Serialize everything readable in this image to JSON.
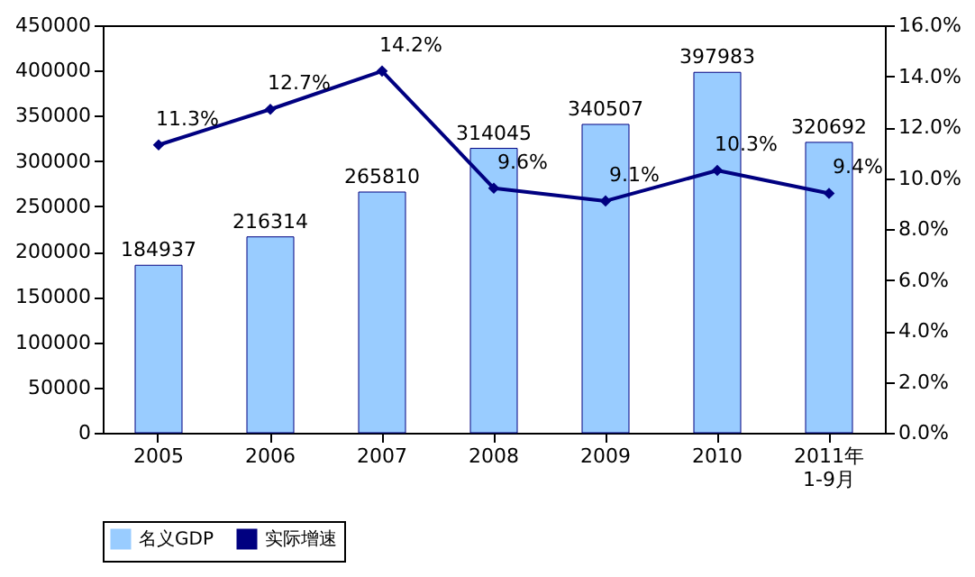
{
  "chart_data": {
    "type": "bar",
    "categories": [
      "2005",
      "2006",
      "2007",
      "2008",
      "2009",
      "2010",
      "2011年\n1-9月"
    ],
    "series": [
      {
        "name": "名义GDP",
        "color": "#99ccff",
        "values": [
          184937,
          216314,
          265810,
          314045,
          340507,
          397983,
          320692
        ]
      },
      {
        "name": "实际增速",
        "type": "line",
        "axis": "y2",
        "color": "#000080",
        "marker": "diamond",
        "values": [
          11.3,
          12.7,
          14.2,
          9.6,
          9.1,
          10.3,
          9.4
        ],
        "value_labels": [
          "11.3%",
          "12.7%",
          "14.2%",
          "9.6%",
          "9.1%",
          "10.3%",
          "9.4%"
        ]
      }
    ],
    "ylim": [
      0,
      450000
    ],
    "yticks": [
      0,
      50000,
      100000,
      150000,
      200000,
      250000,
      300000,
      350000,
      400000,
      450000
    ],
    "y2lim": [
      0,
      16
    ],
    "y2ticks": [
      {
        "value": 0,
        "label": "0.0%"
      },
      {
        "value": 2,
        "label": "2.0%"
      },
      {
        "value": 4,
        "label": "4.0%"
      },
      {
        "value": 6,
        "label": "6.0%"
      },
      {
        "value": 8,
        "label": "8.0%"
      },
      {
        "value": 10,
        "label": "10.0%"
      },
      {
        "value": 12,
        "label": "12.0%"
      },
      {
        "value": 14,
        "label": "14.0%"
      },
      {
        "value": 16,
        "label": "16.0%"
      }
    ],
    "data_labels": true,
    "legend": "bottom",
    "grid": false
  }
}
